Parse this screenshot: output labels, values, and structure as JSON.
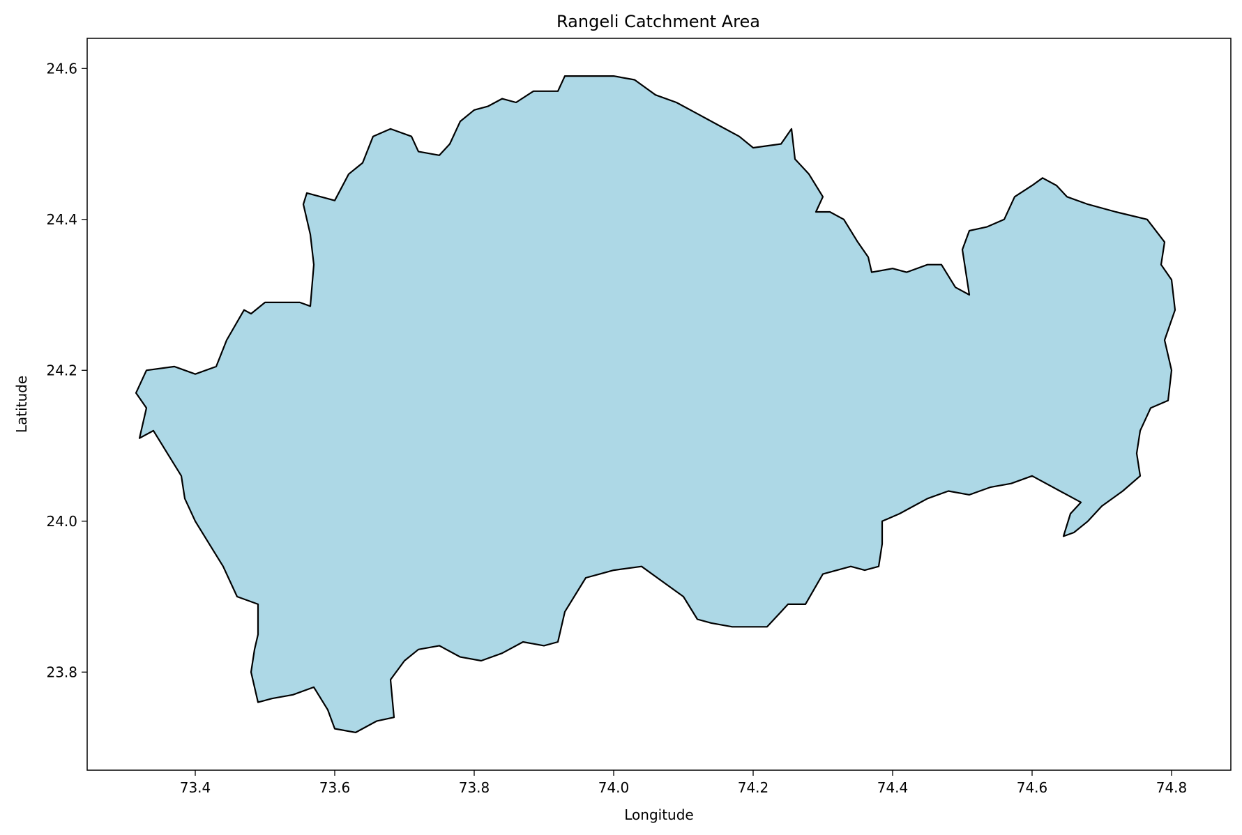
{
  "chart_data": {
    "type": "map",
    "title": "Rangeli Catchment Area",
    "xlabel": "Longitude",
    "ylabel": "Latitude",
    "xlim": [
      73.245,
      74.885
    ],
    "ylim": [
      23.67,
      24.64
    ],
    "x_ticks": [
      "73.4",
      "73.6",
      "73.8",
      "74.0",
      "74.2",
      "74.4",
      "74.6",
      "74.8"
    ],
    "y_ticks": [
      "23.8",
      "24.0",
      "24.2",
      "24.4",
      "24.6"
    ],
    "grid": false,
    "fill_color": "#add8e6",
    "edge_color": "#000000",
    "boundary": [
      [
        73.33,
        24.2
      ],
      [
        73.37,
        24.205
      ],
      [
        73.4,
        24.195
      ],
      [
        73.43,
        24.205
      ],
      [
        73.445,
        24.24
      ],
      [
        73.47,
        24.28
      ],
      [
        73.48,
        24.275
      ],
      [
        73.5,
        24.29
      ],
      [
        73.55,
        24.29
      ],
      [
        73.565,
        24.285
      ],
      [
        73.57,
        24.34
      ],
      [
        73.565,
        24.38
      ],
      [
        73.555,
        24.42
      ],
      [
        73.56,
        24.435
      ],
      [
        73.6,
        24.425
      ],
      [
        73.62,
        24.46
      ],
      [
        73.64,
        24.475
      ],
      [
        73.655,
        24.51
      ],
      [
        73.68,
        24.52
      ],
      [
        73.71,
        24.51
      ],
      [
        73.72,
        24.49
      ],
      [
        73.75,
        24.485
      ],
      [
        73.765,
        24.5
      ],
      [
        73.78,
        24.53
      ],
      [
        73.8,
        24.545
      ],
      [
        73.82,
        24.55
      ],
      [
        73.84,
        24.56
      ],
      [
        73.86,
        24.555
      ],
      [
        73.885,
        24.57
      ],
      [
        73.92,
        24.57
      ],
      [
        73.93,
        24.59
      ],
      [
        73.96,
        24.59
      ],
      [
        74.0,
        24.59
      ],
      [
        74.03,
        24.585
      ],
      [
        74.06,
        24.565
      ],
      [
        74.09,
        24.555
      ],
      [
        74.12,
        24.54
      ],
      [
        74.15,
        24.525
      ],
      [
        74.18,
        24.51
      ],
      [
        74.2,
        24.495
      ],
      [
        74.24,
        24.5
      ],
      [
        74.255,
        24.52
      ],
      [
        74.26,
        24.48
      ],
      [
        74.28,
        24.46
      ],
      [
        74.3,
        24.43
      ],
      [
        74.29,
        24.41
      ],
      [
        74.31,
        24.41
      ],
      [
        74.33,
        24.4
      ],
      [
        74.35,
        24.37
      ],
      [
        74.365,
        24.35
      ],
      [
        74.37,
        24.33
      ],
      [
        74.4,
        24.335
      ],
      [
        74.42,
        24.33
      ],
      [
        74.45,
        24.34
      ],
      [
        74.47,
        24.34
      ],
      [
        74.49,
        24.31
      ],
      [
        74.51,
        24.3
      ],
      [
        74.5,
        24.36
      ],
      [
        74.51,
        24.385
      ],
      [
        74.535,
        24.39
      ],
      [
        74.56,
        24.4
      ],
      [
        74.575,
        24.43
      ],
      [
        74.6,
        24.445
      ],
      [
        74.615,
        24.455
      ],
      [
        74.635,
        24.445
      ],
      [
        74.65,
        24.43
      ],
      [
        74.68,
        24.42
      ],
      [
        74.72,
        24.41
      ],
      [
        74.765,
        24.4
      ],
      [
        74.79,
        24.37
      ],
      [
        74.785,
        24.34
      ],
      [
        74.8,
        24.32
      ],
      [
        74.805,
        24.28
      ],
      [
        74.79,
        24.24
      ],
      [
        74.8,
        24.2
      ],
      [
        74.795,
        24.16
      ],
      [
        74.77,
        24.15
      ],
      [
        74.755,
        24.12
      ],
      [
        74.75,
        24.09
      ],
      [
        74.755,
        24.06
      ],
      [
        74.73,
        24.04
      ],
      [
        74.7,
        24.02
      ],
      [
        74.68,
        24.0
      ],
      [
        74.66,
        23.985
      ],
      [
        74.645,
        23.98
      ],
      [
        74.655,
        24.01
      ],
      [
        74.67,
        24.025
      ],
      [
        74.64,
        24.04
      ],
      [
        74.6,
        24.06
      ],
      [
        74.57,
        24.05
      ],
      [
        74.54,
        24.045
      ],
      [
        74.51,
        24.035
      ],
      [
        74.48,
        24.04
      ],
      [
        74.45,
        24.03
      ],
      [
        74.43,
        24.02
      ],
      [
        74.41,
        24.01
      ],
      [
        74.385,
        24.0
      ],
      [
        74.385,
        23.97
      ],
      [
        74.38,
        23.94
      ],
      [
        74.36,
        23.935
      ],
      [
        74.34,
        23.94
      ],
      [
        74.3,
        23.93
      ],
      [
        74.275,
        23.89
      ],
      [
        74.25,
        23.89
      ],
      [
        74.24,
        23.88
      ],
      [
        74.22,
        23.86
      ],
      [
        74.17,
        23.86
      ],
      [
        74.14,
        23.865
      ],
      [
        74.12,
        23.87
      ],
      [
        74.1,
        23.9
      ],
      [
        74.07,
        23.92
      ],
      [
        74.04,
        23.94
      ],
      [
        74.0,
        23.935
      ],
      [
        73.98,
        23.93
      ],
      [
        73.96,
        23.925
      ],
      [
        73.93,
        23.88
      ],
      [
        73.92,
        23.84
      ],
      [
        73.9,
        23.835
      ],
      [
        73.87,
        23.84
      ],
      [
        73.84,
        23.825
      ],
      [
        73.81,
        23.815
      ],
      [
        73.78,
        23.82
      ],
      [
        73.75,
        23.835
      ],
      [
        73.72,
        23.83
      ],
      [
        73.7,
        23.815
      ],
      [
        73.68,
        23.79
      ],
      [
        73.685,
        23.74
      ],
      [
        73.66,
        23.735
      ],
      [
        73.63,
        23.72
      ],
      [
        73.6,
        23.725
      ],
      [
        73.59,
        23.75
      ],
      [
        73.57,
        23.78
      ],
      [
        73.54,
        23.77
      ],
      [
        73.51,
        23.765
      ],
      [
        73.49,
        23.76
      ],
      [
        73.48,
        23.8
      ],
      [
        73.485,
        23.83
      ],
      [
        73.49,
        23.85
      ],
      [
        73.49,
        23.89
      ],
      [
        73.46,
        23.9
      ],
      [
        73.44,
        23.94
      ],
      [
        73.42,
        23.97
      ],
      [
        73.4,
        24.0
      ],
      [
        73.385,
        24.03
      ],
      [
        73.38,
        24.06
      ],
      [
        73.36,
        24.09
      ],
      [
        73.34,
        24.12
      ],
      [
        73.32,
        24.11
      ],
      [
        73.33,
        24.15
      ],
      [
        73.315,
        24.17
      ],
      [
        73.33,
        24.2
      ]
    ]
  }
}
